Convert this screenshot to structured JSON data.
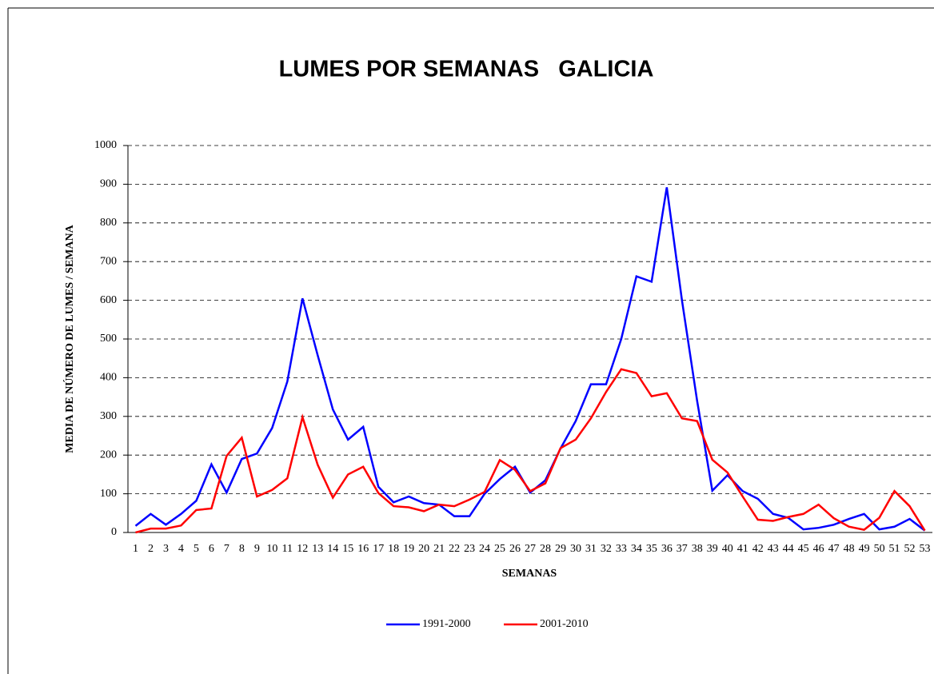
{
  "chart_data": {
    "type": "line",
    "title": "LUMES POR SEMANAS   GALICIA",
    "x_label": "SEMANAS",
    "y_label": "MEDIA DE NÚMERO DE LUMES / SEMANA",
    "categories": [
      1,
      2,
      3,
      4,
      5,
      6,
      7,
      8,
      9,
      10,
      11,
      12,
      13,
      14,
      15,
      16,
      17,
      18,
      19,
      20,
      21,
      22,
      23,
      24,
      25,
      26,
      27,
      28,
      29,
      30,
      31,
      32,
      33,
      34,
      35,
      36,
      37,
      38,
      39,
      40,
      41,
      42,
      43,
      44,
      45,
      46,
      47,
      48,
      49,
      50,
      51,
      52,
      53
    ],
    "series": [
      {
        "name": "1991-2000",
        "color": "#0000ff",
        "values": [
          17,
          48,
          20,
          48,
          82,
          176,
          103,
          190,
          204,
          270,
          390,
          605,
          458,
          318,
          240,
          273,
          118,
          78,
          93,
          76,
          72,
          42,
          42,
          100,
          138,
          170,
          103,
          135,
          217,
          288,
          383,
          383,
          500,
          662,
          648,
          892,
          600,
          340,
          108,
          148,
          107,
          87,
          48,
          38,
          8,
          12,
          20,
          35,
          48,
          8,
          15,
          35,
          5
        ]
      },
      {
        "name": "2001-2010",
        "color": "#ff0000",
        "values": [
          0,
          10,
          10,
          18,
          58,
          62,
          198,
          245,
          93,
          110,
          140,
          298,
          175,
          90,
          150,
          170,
          102,
          68,
          65,
          55,
          72,
          68,
          85,
          105,
          187,
          162,
          107,
          127,
          218,
          240,
          295,
          363,
          422,
          412,
          352,
          360,
          295,
          288,
          188,
          155,
          93,
          33,
          30,
          40,
          48,
          72,
          37,
          15,
          7,
          38,
          107,
          68,
          5
        ]
      }
    ],
    "ylim": [
      0,
      1000
    ],
    "yticks": [
      0,
      100,
      200,
      300,
      400,
      500,
      600,
      700,
      800,
      900,
      1000
    ],
    "grid": true,
    "legend": "bottom"
  }
}
